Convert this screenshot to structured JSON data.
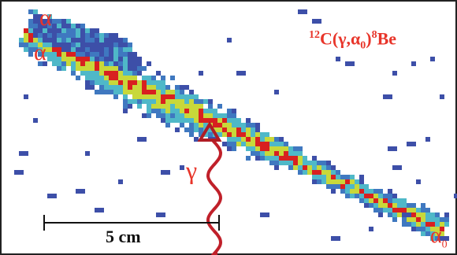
{
  "labels": {
    "alpha_upper": "α",
    "alpha_lower": "α",
    "reaction": {
      "mass_c": "12",
      "c": "C(",
      "gamma": "γ",
      "comma": ",",
      "alpha": "α",
      "zero": "0",
      "close": ")",
      "mass_be": "8",
      "be": "Be"
    },
    "gamma": "γ",
    "alpha0": {
      "alpha": "α",
      "zero": "0"
    }
  },
  "scale_bar": {
    "label": "5 cm"
  },
  "colors": {
    "label_red": "#e8352a",
    "track_low": "#3d4fa8",
    "track_mid": "#4fb8c8",
    "track_high": "#c8d83a",
    "hot": "#d82020",
    "photon": "#c0202a"
  }
}
